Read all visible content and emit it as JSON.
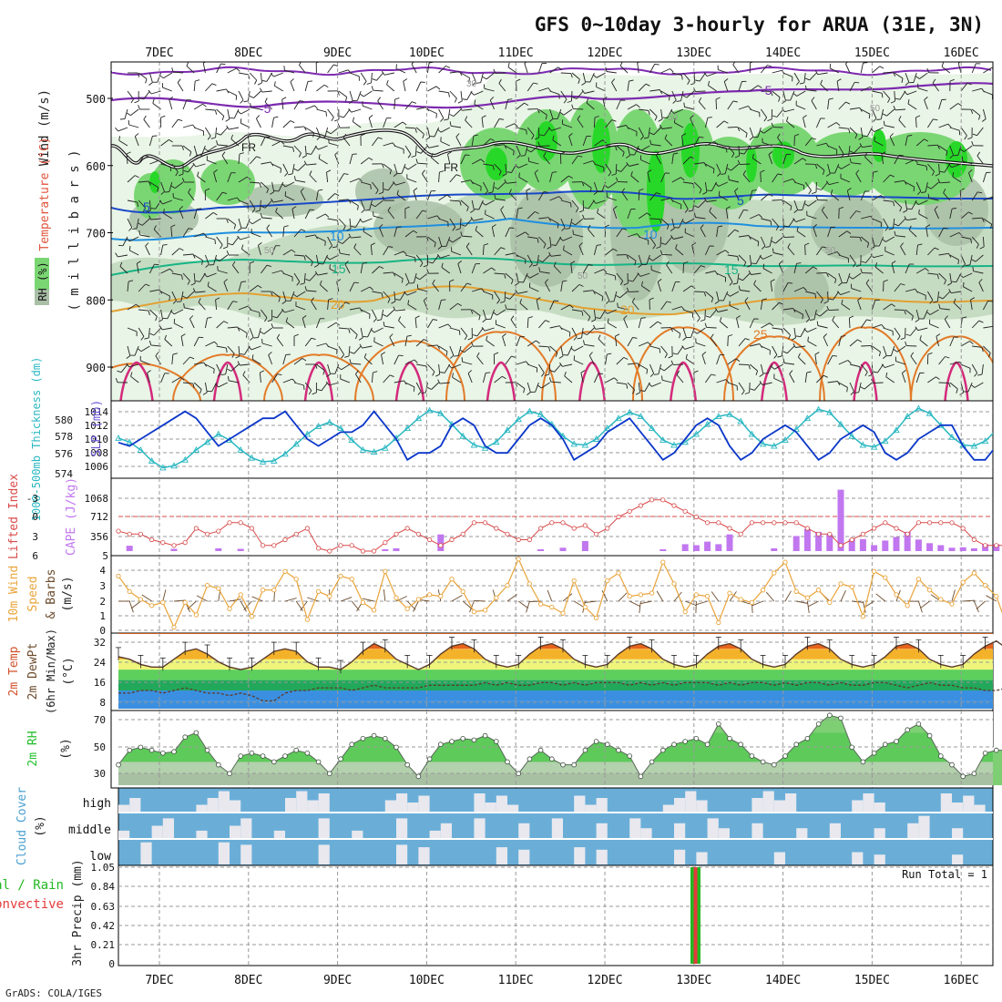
{
  "title": "GFS 0~10day 3-hourly for ARUA (31E, 3N)",
  "footer": "GrADS: COLA/IGES",
  "colors": {
    "rh_light": "#e9f5e6",
    "rh_mid": "#c6dcc2",
    "rh_gray": "#a9bfa6",
    "rh_green": "#7ad673",
    "rh_bright": "#28d828",
    "slp": "#0b37c9",
    "thickness": "#2bb8c2",
    "cape": "#c177ef",
    "lifted": "#d84a4a",
    "wind10": "#e9a43a",
    "barb": "#6b4a2b",
    "rh2m": "#22c02c",
    "cloud": "#6aaed8",
    "precip_total": "#22b822",
    "precip_conv": "#e43b3b"
  },
  "x_axis": {
    "days": [
      "7DEC",
      "8DEC",
      "9DEC",
      "10DEC",
      "11DEC",
      "12DEC",
      "13DEC",
      "14DEC",
      "15DEC",
      "16DEC"
    ]
  },
  "panels": {
    "upper": {
      "ylabel_wind": "Wind (m/s)",
      "ylabel_temp": "Temperature (°C)",
      "ylabel_rh": "RH (%)",
      "ylabel_mb": "( m i l l i b a r s )",
      "pressure_ticks": [
        "500",
        "600",
        "700",
        "800",
        "900"
      ],
      "contour_labels": {
        "freezing": "FR",
        "t_minus5": "-5",
        "t5": "5",
        "t10": "10",
        "t15": "15",
        "t20": "20",
        "t25": "25",
        "rh30": "30",
        "rh50": "50"
      }
    },
    "slp": {
      "ylabel_thick": "1000-500mb Thickness (dm)",
      "ylabel_slp": "SLP (mb)",
      "thick_ticks": [
        "580",
        "578",
        "576",
        "574"
      ],
      "slp_ticks": [
        "1014",
        "1012",
        "1010",
        "1008",
        "1006"
      ]
    },
    "cape": {
      "ylabel_li": "Lifted Index",
      "ylabel_cape": "CAPE (J/kg)",
      "li_ticks": [
        "-3",
        "0",
        "3",
        "6"
      ],
      "cape_ticks": [
        "1068",
        "712",
        "356",
        "5"
      ]
    },
    "wind10": {
      "ylabel1": "10m Wind",
      "ylabel2": "Speed",
      "ylabel3": "& Barbs",
      "ylabel4": "(m/s)",
      "ticks": [
        "4",
        "3",
        "2",
        "1",
        "0"
      ]
    },
    "temp2m": {
      "ylabel1": "2m Temp",
      "ylabel2": "2m DewPt",
      "ylabel3": "(6hr Min/Max)",
      "ylabel4": "(°C)",
      "ticks": [
        "32",
        "24",
        "16",
        "8"
      ]
    },
    "rh2m": {
      "ylabel1": "2m RH",
      "ylabel2": "(%)",
      "ticks": [
        "70",
        "50",
        "30"
      ]
    },
    "cloud": {
      "ylabel1": "Cloud Cover",
      "ylabel2": "(%)",
      "levels": [
        "high",
        "middle",
        "low"
      ]
    },
    "precip": {
      "ylabel1": "3hr Precip (mm)",
      "legend_total": "Total / Rain",
      "legend_conv": "Convective",
      "run_total": "Run Total = 1",
      "ticks": [
        "1.05",
        "0.84",
        "0.63",
        "0.42",
        "0.21",
        "0"
      ]
    }
  },
  "chart_data": [
    {
      "type": "line",
      "name": "SLP",
      "unit": "mb",
      "ylim": [
        1005,
        1015
      ],
      "x_unit": "3-hourly steps from 6 Dec 12Z",
      "values": [
        1009.5,
        1009,
        1010,
        1011,
        1012,
        1013,
        1014,
        1013,
        1011,
        1009,
        1010,
        1011,
        1012,
        1013,
        1013,
        1014,
        1012,
        1010,
        1009,
        1010,
        1011,
        1011,
        1012,
        1014,
        1012,
        1010,
        1007,
        1008,
        1008,
        1009,
        1012,
        1013,
        1012,
        1009,
        1008,
        1008,
        1010,
        1012,
        1013,
        1012,
        1010,
        1007,
        1008,
        1009,
        1011,
        1012,
        1013,
        1011,
        1009,
        1007,
        1008,
        1010,
        1012,
        1013,
        1012,
        1009,
        1007,
        1008,
        1010,
        1011,
        1012,
        1011,
        1009,
        1007,
        1008,
        1010,
        1011,
        1012,
        1011,
        1008,
        1007,
        1008,
        1010,
        1011,
        1012,
        1012,
        1009,
        1007,
        1007,
        1009,
        1011,
        1012
      ]
    },
    {
      "type": "line",
      "name": "1000-500mb Thickness",
      "unit": "dm",
      "ylim": [
        574,
        581
      ],
      "values": [
        577.6,
        577.2,
        576.4,
        575.3,
        574.6,
        574.8,
        575.4,
        576.4,
        577.2,
        578.0,
        577.4,
        576.4,
        575.6,
        575.2,
        575.3,
        576.0,
        577.0,
        578.0,
        578.8,
        579.2,
        578.6,
        577.4,
        576.4,
        576.2,
        576.6,
        577.6,
        578.6,
        579.6,
        580.4,
        580.1,
        579.0,
        577.8,
        576.9,
        576.6,
        577.2,
        578.4,
        579.5,
        580.3,
        580.0,
        579.0,
        577.8,
        577.0,
        576.9,
        577.5,
        578.6,
        579.6,
        580.2,
        579.8,
        578.6,
        577.4,
        576.9,
        577.2,
        578.0,
        579.0,
        579.8,
        580.0,
        579.3,
        578.0,
        577.0,
        576.8,
        577.4,
        578.5,
        579.6,
        580.5,
        580.2,
        579.0,
        577.8,
        576.9,
        576.7,
        577.3,
        578.4,
        579.8,
        580.6,
        580.1,
        578.9,
        577.7,
        576.9,
        576.8,
        577.3,
        578.4,
        577.8,
        577.5
      ]
    },
    {
      "type": "bar",
      "name": "CAPE",
      "unit": "J/kg",
      "ylim": [
        5,
        1424
      ],
      "values": [
        0,
        60,
        0,
        0,
        0,
        0,
        0,
        0,
        0,
        0,
        40,
        0,
        0,
        0,
        0,
        0,
        0,
        0,
        0,
        0,
        0,
        0,
        0,
        0,
        0,
        0,
        0,
        0,
        0,
        0,
        0,
        0,
        0,
        0,
        0,
        0,
        0,
        0,
        0,
        0,
        0,
        0,
        0,
        0,
        0,
        0,
        0,
        0,
        0,
        0,
        0,
        0,
        0,
        0,
        0,
        0,
        0,
        0,
        0,
        0,
        0,
        0,
        0,
        0,
        0,
        0,
        0,
        0,
        0,
        0,
        0,
        0,
        0,
        0,
        0,
        0,
        0,
        0,
        0,
        0,
        0,
        0
      ]
    },
    {
      "type": "line",
      "name": "Lifted Index",
      "ylim": [
        6,
        -6
      ],
      "values": [
        2.5,
        3,
        3,
        4,
        4.5,
        5,
        4.5,
        2,
        3,
        2.5,
        1,
        1,
        2,
        5,
        5,
        4,
        3,
        2,
        5.5,
        6,
        5,
        5,
        6,
        6,
        4.5,
        3,
        2,
        3,
        4,
        5,
        4,
        3,
        1,
        1,
        2,
        3,
        4,
        4,
        2,
        1,
        1,
        2,
        1.5,
        3,
        2,
        0,
        -1,
        -2,
        -3,
        -3,
        -2,
        -1,
        0,
        1,
        1,
        2,
        3,
        1,
        1,
        1,
        1,
        1,
        2,
        3,
        3,
        5,
        4,
        3,
        2,
        1,
        2,
        3,
        1,
        1,
        1,
        1,
        2,
        4,
        5,
        5,
        5,
        5
      ]
    },
    {
      "type": "line",
      "name": "10m Wind Speed",
      "unit": "m/s",
      "ylim": [
        0,
        4.7
      ],
      "values": [
        3.5,
        2.5,
        2,
        1.6,
        1.8,
        0.2,
        1.8,
        1,
        2.9,
        2.7,
        1.4,
        2.3,
        0.9,
        2.6,
        2.6,
        3.8,
        3.3,
        0.7,
        2.5,
        2.2,
        3.5,
        3.3,
        1.8,
        1.3,
        3.8,
        2.1,
        1.4,
        2,
        2.3,
        2.2,
        3.3,
        2.5,
        1.2,
        1.3,
        2.1,
        2.9,
        4.6,
        3,
        1.7,
        1.5,
        1.1,
        3.2,
        1.5,
        0.8,
        3.2,
        3.7,
        2.2,
        2.3,
        2.4,
        4.4,
        3,
        1.2,
        2.3,
        2.2,
        0.5,
        2.4,
        2,
        1.8,
        2.6,
        3.7,
        4.4,
        2.5,
        2.1,
        2.6,
        1.8,
        3,
        2.8,
        0.9,
        3.8,
        3.4,
        2.3,
        1.6,
        3.3,
        2.6,
        2,
        1.7,
        3.1,
        3.7,
        2.9,
        2.2,
        0.2,
        2.5
      ]
    },
    {
      "type": "area",
      "name": "2m Temp",
      "unit": "°C",
      "ylim": [
        5,
        33
      ],
      "values": [
        25,
        24,
        22,
        21,
        21,
        24,
        27,
        28,
        26,
        23,
        21,
        20,
        21,
        24,
        27,
        28,
        27,
        23,
        21,
        21,
        20,
        23,
        27,
        30,
        28,
        24,
        22,
        20,
        22,
        26,
        29,
        30,
        28,
        24,
        22,
        21,
        22,
        26,
        29,
        30,
        28,
        24,
        22,
        21,
        22,
        26,
        29,
        30,
        28,
        24,
        22,
        21,
        22,
        26,
        29,
        30,
        28,
        24,
        22,
        21,
        22,
        26,
        29,
        30,
        28,
        24,
        22,
        21,
        22,
        25,
        29,
        30,
        28,
        24,
        22,
        21,
        22,
        26,
        29,
        31,
        28,
        24
      ]
    },
    {
      "type": "line",
      "name": "2m DewPt",
      "unit": "°C",
      "values": [
        11,
        11,
        12,
        12,
        11,
        12,
        13,
        12,
        11,
        11,
        10,
        11,
        10,
        8,
        8,
        11,
        12,
        12,
        13,
        13,
        13,
        12,
        13,
        14,
        13,
        13,
        13,
        13,
        14,
        14,
        14,
        14,
        14,
        15,
        14,
        15,
        14,
        14,
        15,
        15,
        14,
        15,
        14,
        15,
        15,
        15,
        14,
        15,
        14,
        15,
        14,
        15,
        15,
        15,
        14,
        15,
        14,
        15,
        15,
        14,
        15,
        14,
        15,
        15,
        14,
        15,
        14,
        14,
        15,
        15,
        14,
        13,
        14,
        15,
        14,
        14,
        13,
        13,
        12,
        12,
        13,
        12
      ]
    },
    {
      "type": "area",
      "name": "2m RH",
      "unit": "%",
      "ylim": [
        24,
        74
      ],
      "values": [
        38,
        48,
        50,
        48,
        46,
        47,
        57,
        60,
        48,
        38,
        32,
        44,
        46,
        44,
        40,
        44,
        48,
        46,
        40,
        32,
        42,
        52,
        56,
        58,
        56,
        50,
        38,
        30,
        42,
        52,
        54,
        56,
        55,
        58,
        54,
        40,
        32,
        42,
        48,
        42,
        38,
        38,
        48,
        54,
        52,
        48,
        44,
        30,
        40,
        48,
        52,
        54,
        56,
        52,
        66,
        56,
        52,
        44,
        40,
        38,
        44,
        52,
        56,
        66,
        72,
        70,
        50,
        40,
        46,
        52,
        54,
        62,
        66,
        58,
        44,
        38,
        30,
        32,
        46,
        48,
        48,
        50
      ]
    },
    {
      "type": "bar",
      "name": "3hr Precip Total / Rain",
      "unit": "mm",
      "ylim": [
        0,
        1.05
      ],
      "values": [
        0,
        0,
        0,
        0,
        0,
        0,
        0,
        0,
        0,
        0,
        0,
        0,
        0,
        0,
        0,
        0,
        0,
        0,
        0,
        0,
        0,
        0,
        0,
        0,
        0,
        0,
        0,
        0,
        0,
        0,
        0,
        0,
        0,
        0,
        0,
        0,
        0,
        0,
        0,
        0,
        0,
        0,
        0,
        0,
        0,
        0,
        0,
        0,
        0,
        0,
        0,
        0,
        0,
        0,
        0,
        0,
        1.05,
        0,
        0,
        0,
        0,
        0,
        0,
        0,
        0,
        0,
        0,
        0,
        0,
        0,
        0,
        0,
        0,
        0,
        0,
        0,
        0,
        0,
        0,
        0,
        0,
        0
      ]
    }
  ]
}
